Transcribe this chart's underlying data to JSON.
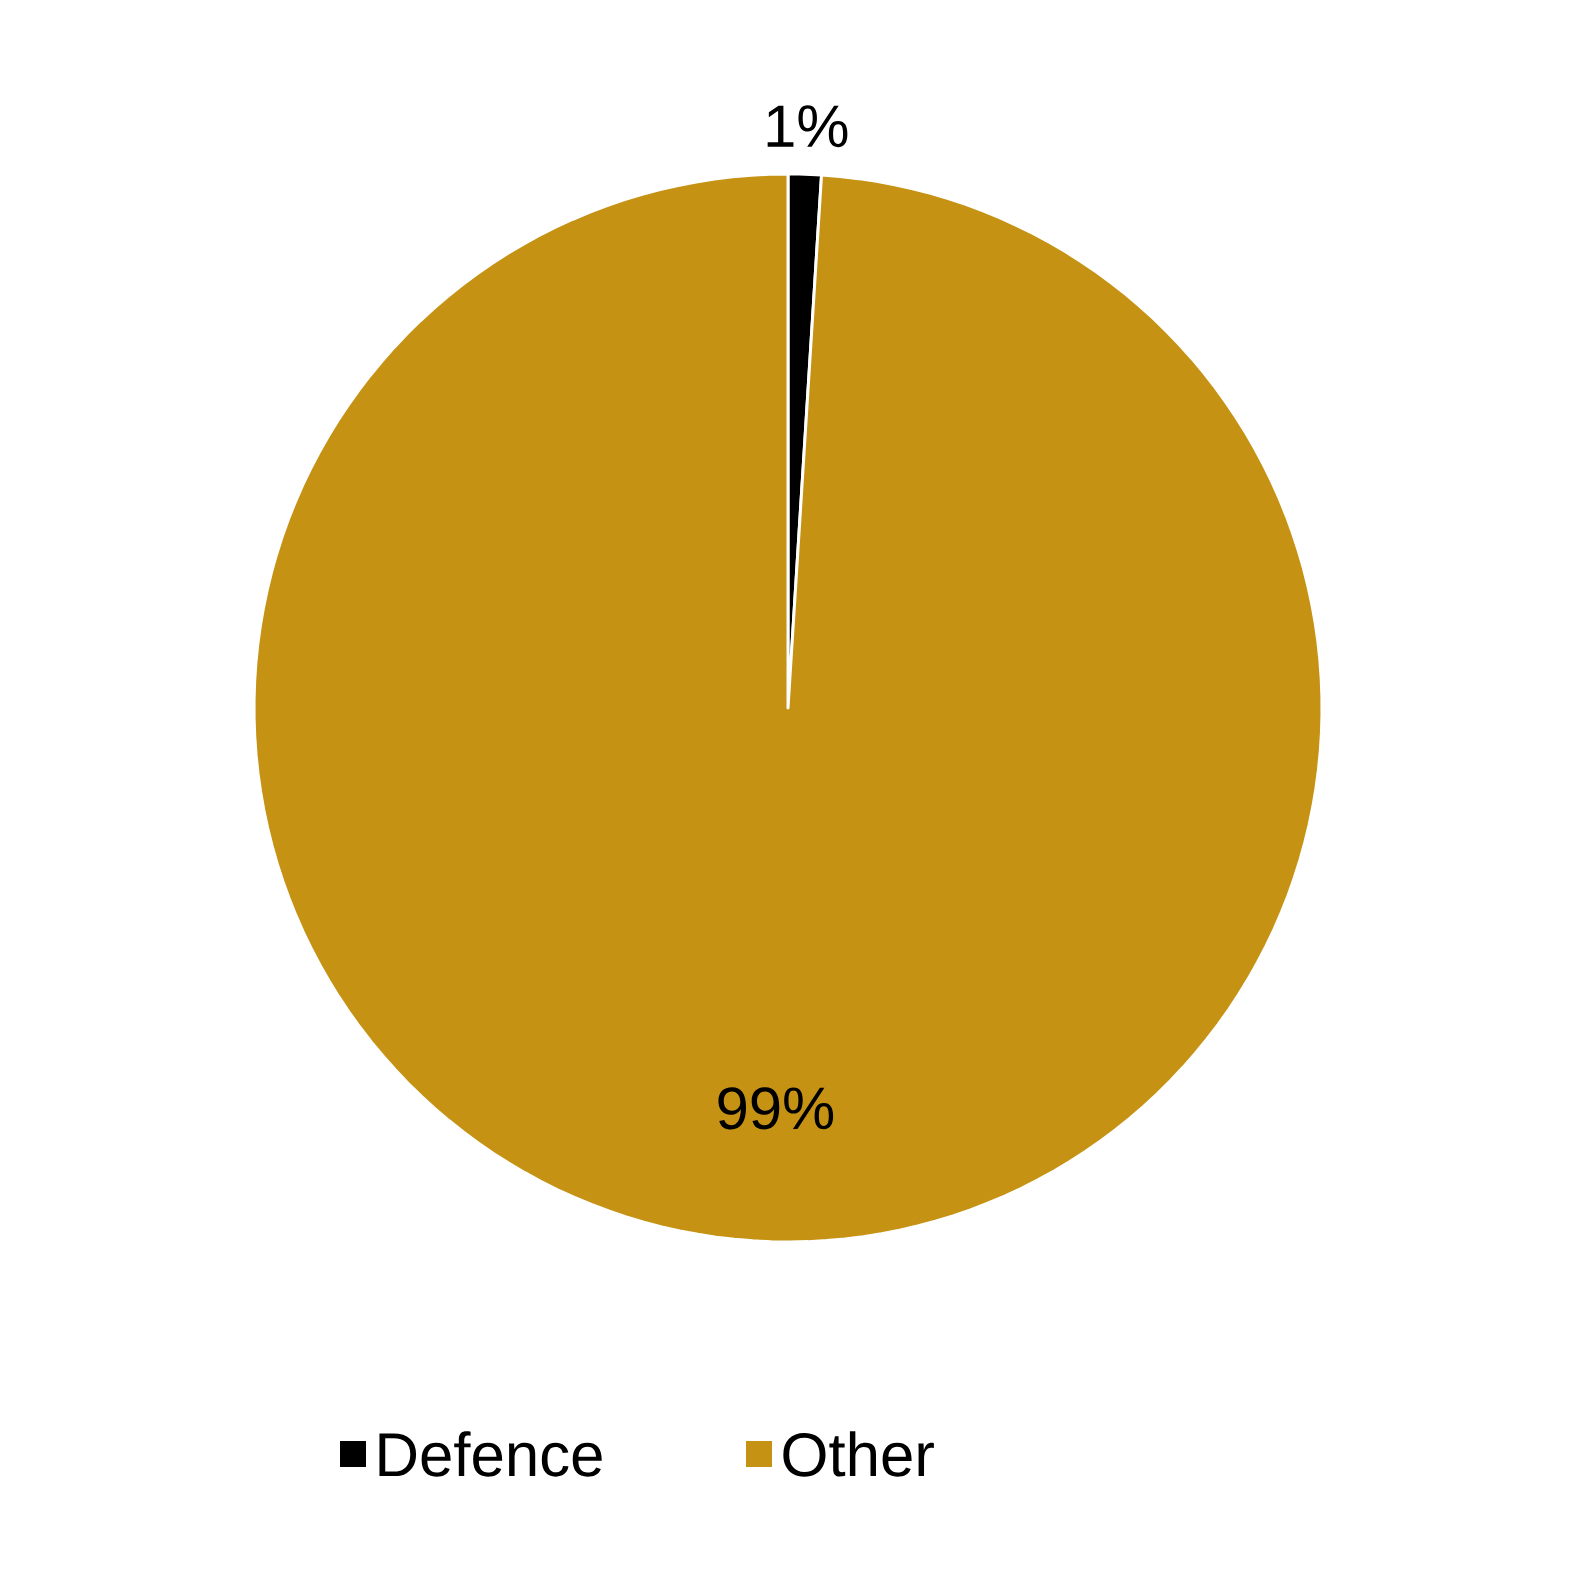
{
  "chart_data": {
    "type": "pie",
    "categories": [
      "Defence",
      "Other"
    ],
    "values": [
      1,
      99
    ],
    "colors": [
      "#000000",
      "#c59213"
    ],
    "value_labels": [
      "1%",
      "99%"
    ],
    "legend": "bottom"
  }
}
